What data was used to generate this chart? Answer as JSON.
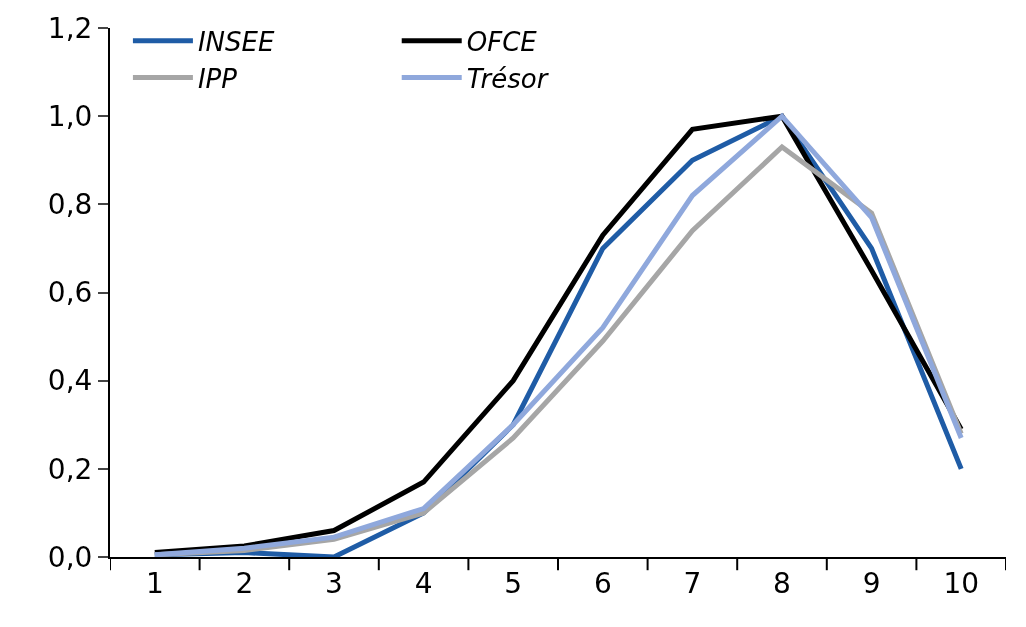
{
  "chart_data": {
    "type": "line",
    "categories": [
      "1",
      "2",
      "3",
      "4",
      "5",
      "6",
      "7",
      "8",
      "9",
      "10"
    ],
    "series": [
      {
        "name": "INSEE",
        "color": "#1f5ca6",
        "values": [
          0.005,
          0.01,
          0.0,
          0.1,
          0.3,
          0.7,
          0.9,
          1.0,
          0.7,
          0.2
        ]
      },
      {
        "name": "OFCE",
        "color": "#000000",
        "values": [
          0.01,
          0.025,
          0.06,
          0.17,
          0.4,
          0.73,
          0.97,
          1.0,
          0.65,
          0.29
        ]
      },
      {
        "name": "IPP",
        "color": "#a6a6a6",
        "values": [
          0.005,
          0.015,
          0.04,
          0.1,
          0.27,
          0.49,
          0.74,
          0.93,
          0.78,
          0.28
        ]
      },
      {
        "name": "Trésor",
        "color": "#8fa8dc",
        "values": [
          0.005,
          0.02,
          0.045,
          0.11,
          0.3,
          0.52,
          0.82,
          1.0,
          0.77,
          0.27
        ]
      }
    ],
    "ylim": [
      0,
      1.2
    ],
    "yticks": [
      {
        "value": 0,
        "label": "0,0"
      },
      {
        "value": 0.2,
        "label": "0,2"
      },
      {
        "value": 0.4,
        "label": "0,4"
      },
      {
        "value": 0.6,
        "label": "0,6"
      },
      {
        "value": 0.8,
        "label": "0,8"
      },
      {
        "value": 1.0,
        "label": "1,0"
      },
      {
        "value": 1.2,
        "label": "1,2"
      }
    ],
    "legend": "top left",
    "marker": "none",
    "line_style": "solid"
  }
}
